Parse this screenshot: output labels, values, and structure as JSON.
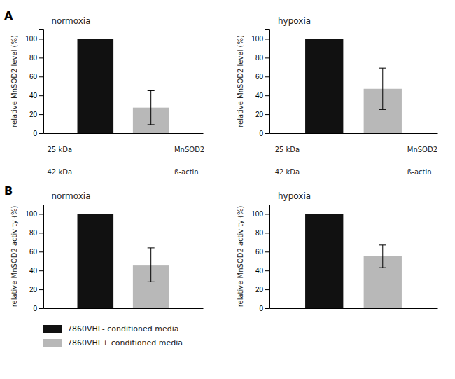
{
  "chart_data": [
    {
      "type": "bar",
      "title": "normoxia",
      "ylabel": "relative MnSOD2 level (%)",
      "categories": [
        null
      ],
      "series": [
        {
          "name": "7860VHL- conditioned media",
          "color": "#111111",
          "values": [
            100
          ],
          "errors": [
            0
          ]
        },
        {
          "name": "7860VHL+ conditioned media",
          "color": "#b8b8b8",
          "values": [
            27
          ],
          "errors": [
            18
          ]
        }
      ],
      "ylim": [
        0,
        110
      ],
      "yticks": [
        0,
        20,
        40,
        60,
        80,
        100
      ],
      "annotations": [
        "A",
        "25 kDa",
        "MnSOD2",
        "42 kDa",
        "ß-actin"
      ]
    },
    {
      "type": "bar",
      "title": "hypoxia",
      "ylabel": "relative MnSOD2 level (%)",
      "categories": [
        null
      ],
      "series": [
        {
          "name": "7860VHL- conditioned media",
          "color": "#111111",
          "values": [
            100
          ],
          "errors": [
            0
          ]
        },
        {
          "name": "7860VHL+ conditioned media",
          "color": "#b8b8b8",
          "values": [
            47
          ],
          "errors": [
            22
          ]
        }
      ],
      "ylim": [
        0,
        110
      ],
      "yticks": [
        0,
        20,
        40,
        60,
        80,
        100
      ],
      "annotations": [
        "25 kDa",
        "MnSOD2",
        "42 kDa",
        "ß-actin"
      ]
    },
    {
      "type": "bar",
      "title": "normoxia",
      "ylabel": "relative MnSOD2 activity (%)",
      "categories": [
        null
      ],
      "series": [
        {
          "name": "7860VHL- conditioned media",
          "color": "#111111",
          "values": [
            100
          ],
          "errors": [
            0
          ]
        },
        {
          "name": "7860VHL+ conditioned media",
          "color": "#b8b8b8",
          "values": [
            46
          ],
          "errors": [
            18
          ]
        }
      ],
      "ylim": [
        0,
        110
      ],
      "yticks": [
        0,
        20,
        40,
        60,
        80,
        100
      ],
      "annotations": [
        "B"
      ]
    },
    {
      "type": "bar",
      "title": "hypoxia",
      "ylabel": "relative MnSOD2 activity (%)",
      "categories": [
        null
      ],
      "series": [
        {
          "name": "7860VHL- conditioned media",
          "color": "#111111",
          "values": [
            100
          ],
          "errors": [
            0
          ]
        },
        {
          "name": "7860VHL+ conditioned media",
          "color": "#b8b8b8",
          "values": [
            55
          ],
          "errors": [
            12
          ]
        }
      ],
      "ylim": [
        0,
        110
      ],
      "yticks": [
        0,
        20,
        40,
        60,
        80,
        100
      ],
      "legend": "lower left"
    }
  ]
}
